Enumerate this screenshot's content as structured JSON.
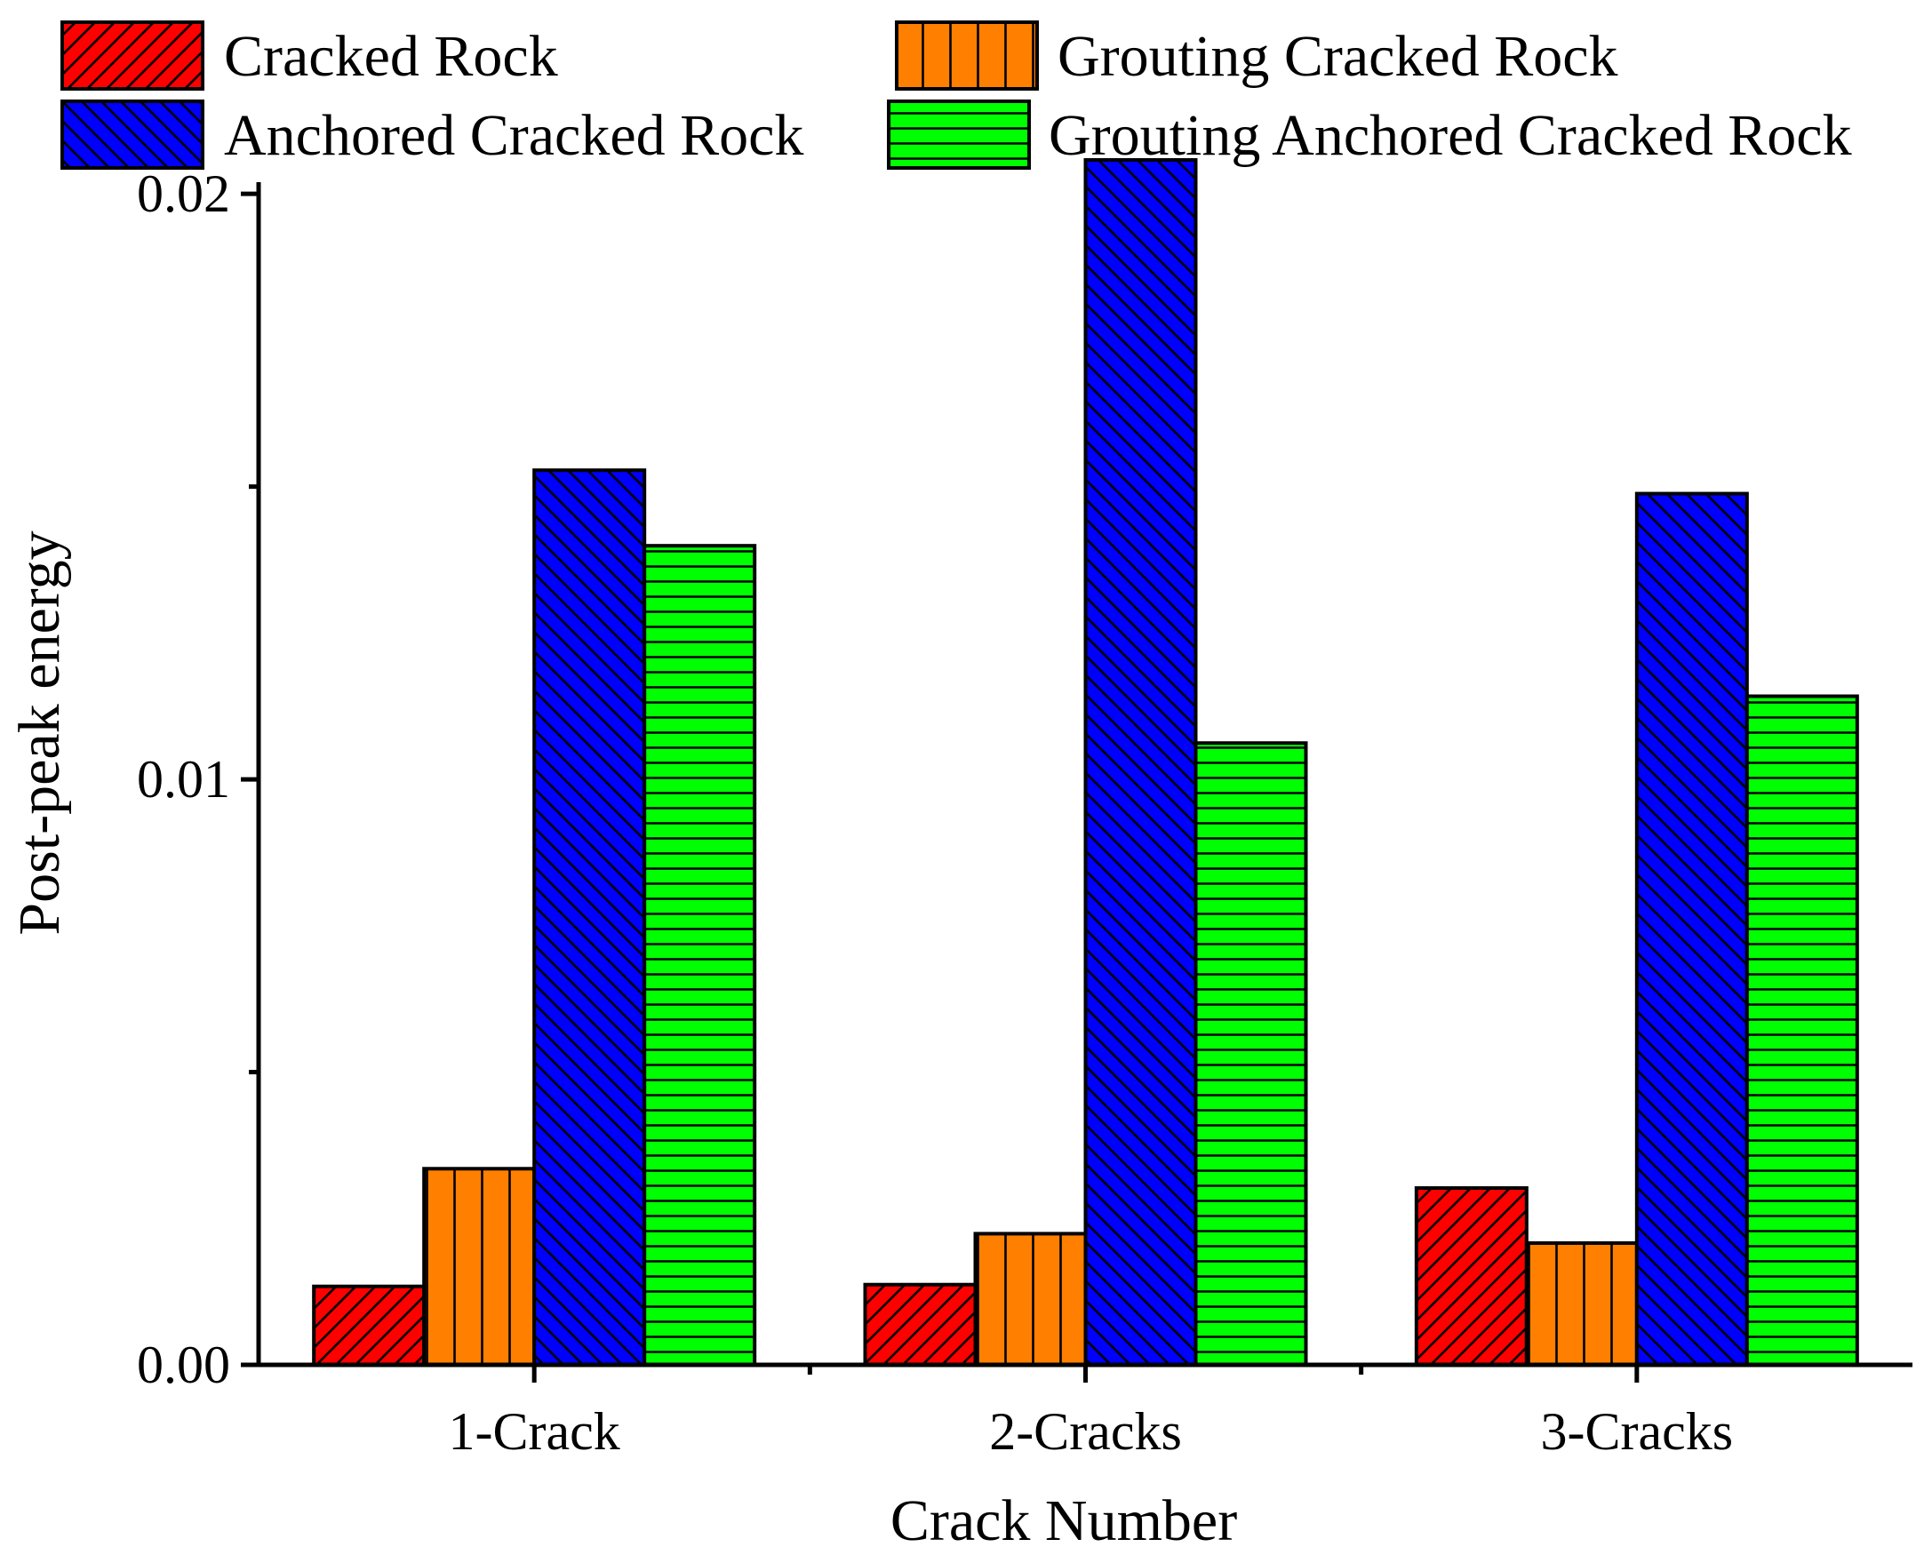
{
  "chart_data": {
    "type": "bar",
    "title": "",
    "xlabel": "Crack Number",
    "ylabel": "Post-peak energy",
    "categories": [
      "1-Crack",
      "2-Cracks",
      "3-Cracks"
    ],
    "ylim": [
      0,
      0.0202
    ],
    "yticks": [
      {
        "value": 0.0,
        "label": "0.00"
      },
      {
        "value": 0.01,
        "label": "0.01"
      },
      {
        "value": 0.02,
        "label": "0.02"
      }
    ],
    "y_minor_ticks": [
      0.005,
      0.015
    ],
    "legend_position": "top",
    "grid": false,
    "series": [
      {
        "name": "Cracked Rock",
        "color": "#ff0000",
        "pattern": "forward-diagonal",
        "values": [
          0.00134,
          0.00137,
          0.00302
        ]
      },
      {
        "name": "Grouting Cracked Rock",
        "color": "#ff8000",
        "pattern": "vertical",
        "values": [
          0.00335,
          0.00224,
          0.00208
        ]
      },
      {
        "name": "Anchored Cracked Rock",
        "color": "#0000ff",
        "pattern": "backward-diagonal",
        "values": [
          0.01528,
          0.02058,
          0.01488
        ]
      },
      {
        "name": "Grouting Anchored Cracked Rock",
        "color": "#00ff00",
        "pattern": "horizontal",
        "values": [
          0.01399,
          0.01062,
          0.01142
        ]
      }
    ]
  }
}
